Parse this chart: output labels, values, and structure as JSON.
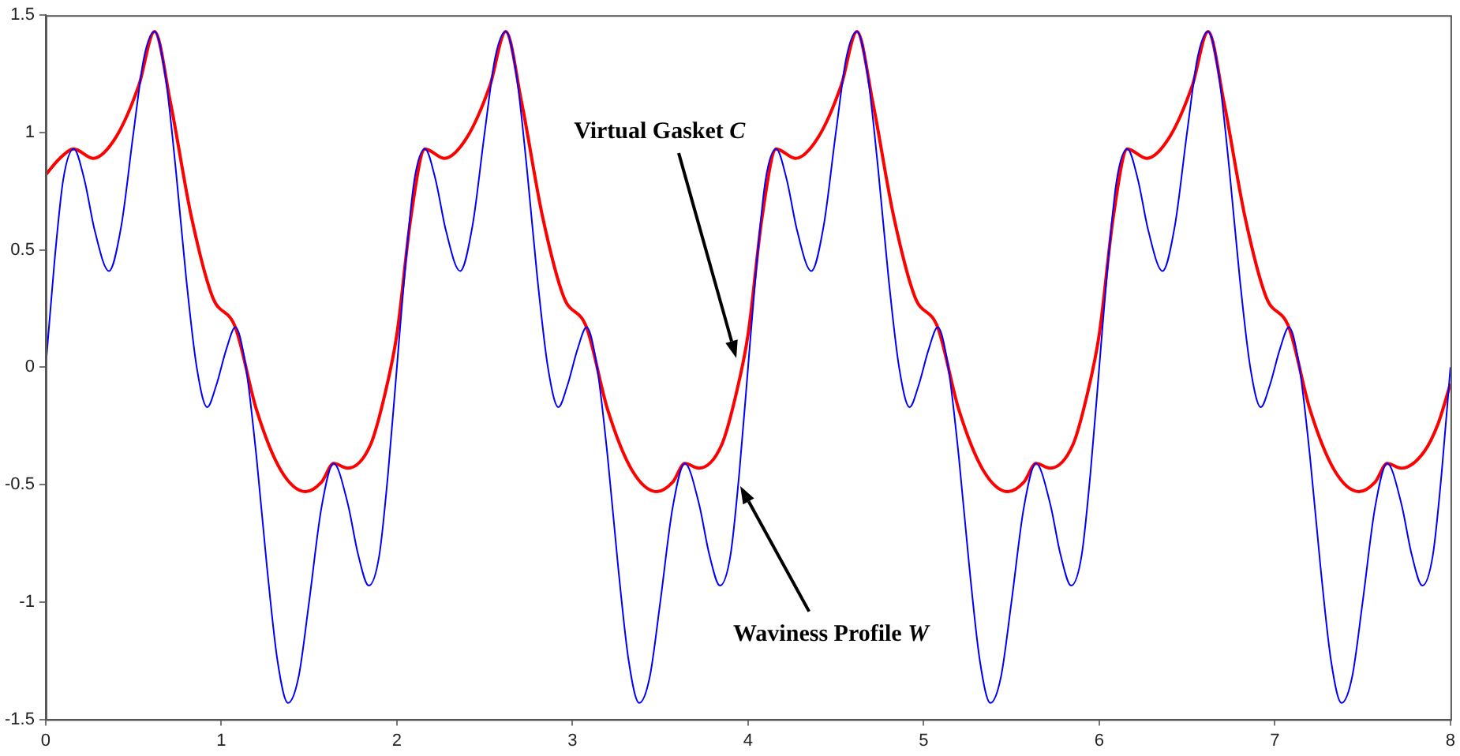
{
  "chart_data": {
    "type": "line",
    "xlim": [
      0,
      8
    ],
    "ylim": [
      -1.5,
      1.5
    ],
    "xticks": [
      0,
      1,
      2,
      3,
      4,
      5,
      6,
      7,
      8
    ],
    "yticks": [
      -1.5,
      -1,
      -0.5,
      0,
      0.5,
      1,
      1.5
    ],
    "grid": false,
    "legend": false,
    "marker": "none",
    "line_style": "solid",
    "series": [
      {
        "color": "#0000ff",
        "x": [
          0,
          0.05,
          0.1,
          0.16,
          0.22,
          0.28,
          0.36,
          0.43,
          0.5,
          0.56,
          0.62,
          0.68,
          0.74,
          0.8,
          0.86,
          0.92,
          0.97,
          1.03,
          1.08,
          1.14,
          1.2,
          1.26,
          1.32,
          1.38,
          1.44,
          1.5,
          1.57,
          1.64,
          1.72,
          1.78,
          1.84,
          1.9,
          1.95,
          2,
          2.05,
          2.1,
          2.16,
          2.22,
          2.28,
          2.36,
          2.43,
          2.5,
          2.56,
          2.62,
          2.68,
          2.74,
          2.8,
          2.86,
          2.92,
          2.97,
          3.03,
          3.08,
          3.14,
          3.2,
          3.26,
          3.32,
          3.38,
          3.44,
          3.5,
          3.57,
          3.64,
          3.72,
          3.78,
          3.84,
          3.9,
          3.95,
          4,
          4.05,
          4.1,
          4.16,
          4.22,
          4.28,
          4.36,
          4.43,
          4.5,
          4.56,
          4.62,
          4.68,
          4.74,
          4.8,
          4.86,
          4.92,
          4.97,
          5.03,
          5.08,
          5.14,
          5.2,
          5.26,
          5.32,
          5.38,
          5.44,
          5.5,
          5.57,
          5.64,
          5.72,
          5.78,
          5.84,
          5.9,
          5.95,
          6,
          6.05,
          6.1,
          6.16,
          6.22,
          6.28,
          6.36,
          6.43,
          6.5,
          6.56,
          6.62,
          6.68,
          6.74,
          6.8,
          6.86,
          6.92,
          6.97,
          7.03,
          7.08,
          7.14,
          7.2,
          7.26,
          7.32,
          7.38,
          7.44,
          7.5,
          7.57,
          7.64,
          7.72,
          7.78,
          7.84,
          7.9,
          7.95,
          8
        ],
        "values": [
          0,
          0.45,
          0.8,
          0.93,
          0.8,
          0.58,
          0.41,
          0.6,
          1.0,
          1.32,
          1.43,
          1.25,
          0.85,
          0.38,
          0,
          -0.17,
          -0.08,
          0.08,
          0.17,
          0,
          -0.38,
          -0.85,
          -1.25,
          -1.43,
          -1.32,
          -1.0,
          -0.6,
          -0.41,
          -0.58,
          -0.8,
          -0.93,
          -0.8,
          -0.45,
          0,
          0.45,
          0.8,
          0.93,
          0.8,
          0.58,
          0.41,
          0.6,
          1.0,
          1.32,
          1.43,
          1.25,
          0.85,
          0.38,
          0,
          -0.17,
          -0.08,
          0.08,
          0.17,
          0,
          -0.38,
          -0.85,
          -1.25,
          -1.43,
          -1.32,
          -1.0,
          -0.6,
          -0.41,
          -0.58,
          -0.8,
          -0.93,
          -0.8,
          -0.45,
          0,
          0.45,
          0.8,
          0.93,
          0.8,
          0.58,
          0.41,
          0.6,
          1.0,
          1.32,
          1.43,
          1.25,
          0.85,
          0.38,
          0,
          -0.17,
          -0.08,
          0.08,
          0.17,
          0,
          -0.38,
          -0.85,
          -1.25,
          -1.43,
          -1.32,
          -1.0,
          -0.6,
          -0.41,
          -0.58,
          -0.8,
          -0.93,
          -0.8,
          -0.45,
          0,
          0.45,
          0.8,
          0.93,
          0.8,
          0.58,
          0.41,
          0.6,
          1.0,
          1.32,
          1.43,
          1.25,
          0.85,
          0.38,
          0,
          -0.17,
          -0.08,
          0.08,
          0.17,
          0,
          -0.38,
          -0.85,
          -1.25,
          -1.43,
          -1.32,
          -1.0,
          -0.6,
          -0.41,
          -0.58,
          -0.8,
          -0.93,
          -0.8,
          -0.45,
          0
        ]
      },
      {
        "color": "#ff0000",
        "x": [
          0,
          0.08,
          0.16,
          0.27,
          0.4,
          0.53,
          0.62,
          0.71,
          0.83,
          0.95,
          1.08,
          1.2,
          1.34,
          1.48,
          1.57,
          1.64,
          1.72,
          1.85,
          1.93,
          2,
          2.08,
          2.16,
          2.27,
          2.4,
          2.53,
          2.62,
          2.71,
          2.83,
          2.95,
          3.08,
          3.2,
          3.34,
          3.48,
          3.57,
          3.64,
          3.72,
          3.85,
          3.93,
          4,
          4.08,
          4.16,
          4.27,
          4.4,
          4.53,
          4.62,
          4.71,
          4.83,
          4.95,
          5.08,
          5.2,
          5.34,
          5.48,
          5.57,
          5.64,
          5.72,
          5.85,
          5.93,
          6,
          6.08,
          6.16,
          6.27,
          6.4,
          6.53,
          6.62,
          6.71,
          6.83,
          6.95,
          7.08,
          7.2,
          7.34,
          7.48,
          7.57,
          7.64,
          7.72,
          7.85,
          7.93,
          8
        ],
        "values": [
          0.82,
          0.89,
          0.93,
          0.89,
          0.98,
          1.2,
          1.43,
          1.13,
          0.64,
          0.3,
          0.17,
          -0.18,
          -0.44,
          -0.53,
          -0.49,
          -0.41,
          -0.43,
          -0.33,
          -0.12,
          0.14,
          0.64,
          0.93,
          0.89,
          0.98,
          1.2,
          1.43,
          1.13,
          0.64,
          0.3,
          0.17,
          -0.18,
          -0.44,
          -0.53,
          -0.49,
          -0.41,
          -0.43,
          -0.33,
          -0.12,
          0.14,
          0.64,
          0.93,
          0.89,
          0.98,
          1.2,
          1.43,
          1.13,
          0.64,
          0.3,
          0.17,
          -0.18,
          -0.44,
          -0.53,
          -0.49,
          -0.41,
          -0.43,
          -0.33,
          -0.12,
          0.14,
          0.64,
          0.93,
          0.89,
          0.98,
          1.2,
          1.43,
          1.13,
          0.64,
          0.3,
          0.17,
          -0.18,
          -0.44,
          -0.53,
          -0.49,
          -0.41,
          -0.43,
          -0.36,
          -0.24,
          -0.07
        ]
      }
    ],
    "annotations": [
      "Virtual Gasket C",
      "Waviness Profile W"
    ]
  }
}
